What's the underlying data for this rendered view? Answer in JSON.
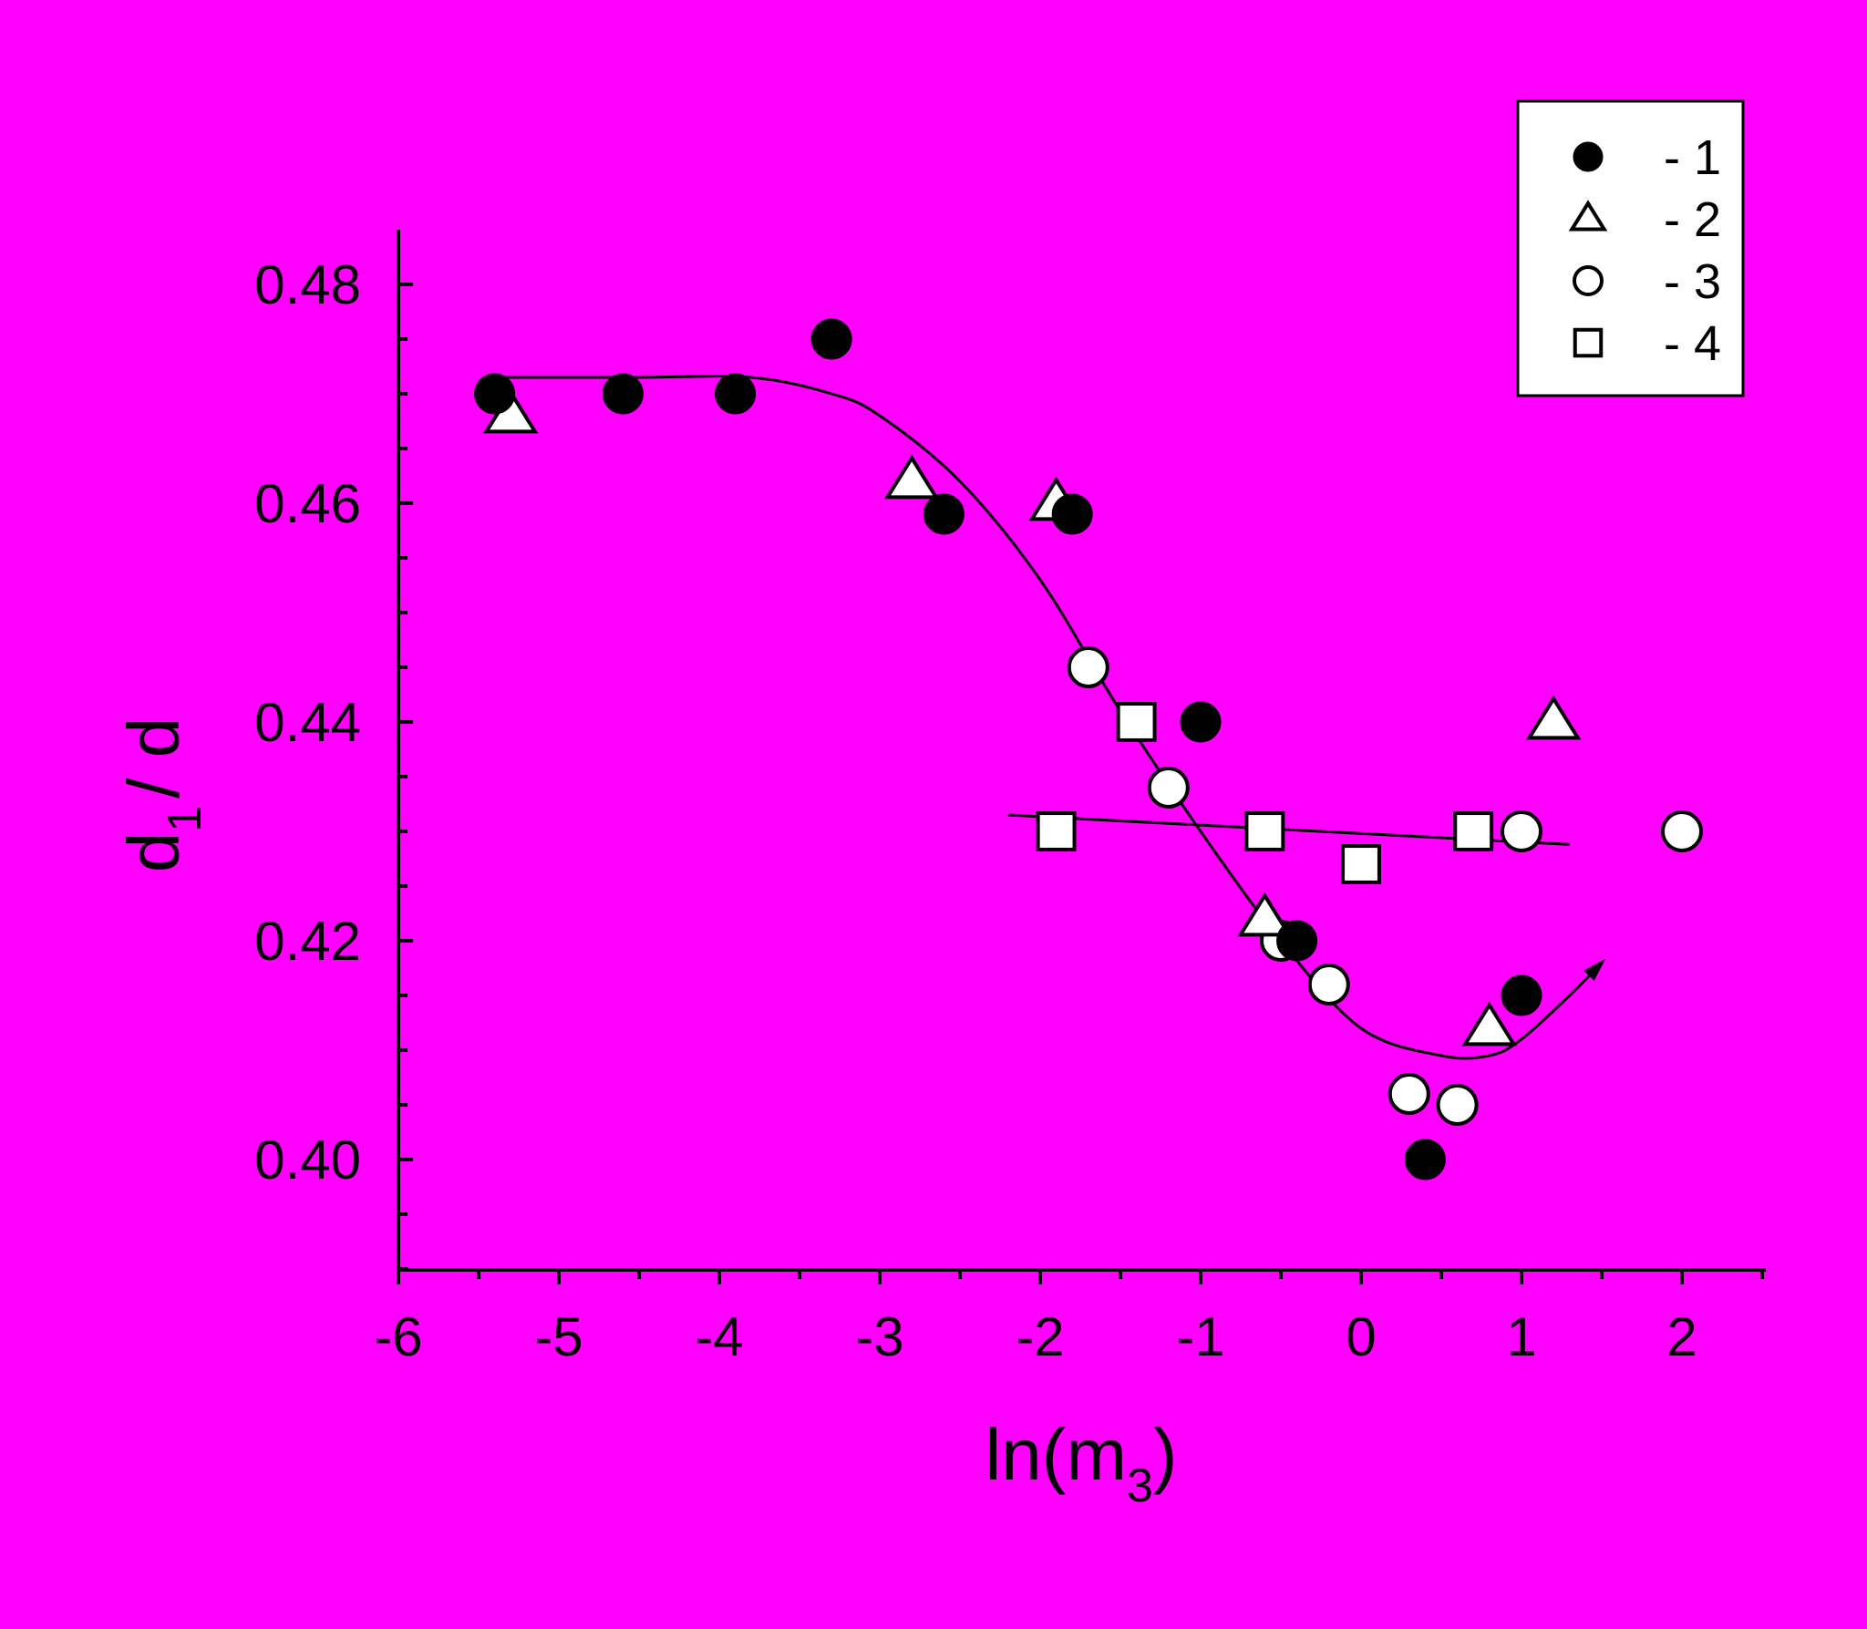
{
  "colors": {
    "background": "#ff00ff",
    "axis": "#000000",
    "filled_marker": "#000000",
    "open_marker_fill": "#ffffff",
    "legend_background": "#ffffff"
  },
  "chart_data": {
    "type": "scatter",
    "xlabel_main": "ln(m",
    "xlabel_sub": "3",
    "xlabel_close": ")",
    "ylabel_main": "d",
    "ylabel_sub": "1",
    "ylabel_rest": "/ d",
    "xlim": [
      -6,
      2.5
    ],
    "ylim": [
      0.39,
      0.485
    ],
    "x_ticks": [
      "-6",
      "-5",
      "-4",
      "-3",
      "-2",
      "-1",
      "0",
      "1",
      "2"
    ],
    "y_ticks": [
      "0.40",
      "0.42",
      "0.44",
      "0.46",
      "0.48"
    ],
    "legend_position": "top-right",
    "series": [
      {
        "name": "- 1",
        "marker": "filled-circle",
        "points": [
          [
            -5.4,
            0.47
          ],
          [
            -4.6,
            0.47
          ],
          [
            -3.9,
            0.47
          ],
          [
            -3.3,
            0.475
          ],
          [
            -2.6,
            0.459
          ],
          [
            -1.8,
            0.459
          ],
          [
            -1.0,
            0.44
          ],
          [
            -0.4,
            0.42
          ],
          [
            0.4,
            0.4
          ],
          [
            1.0,
            0.415
          ]
        ]
      },
      {
        "name": "- 2",
        "marker": "open-triangle",
        "points": [
          [
            -5.3,
            0.468
          ],
          [
            -2.8,
            0.462
          ],
          [
            -1.9,
            0.46
          ],
          [
            -0.6,
            0.422
          ],
          [
            0.8,
            0.412
          ],
          [
            1.2,
            0.44
          ]
        ]
      },
      {
        "name": "- 3",
        "marker": "open-circle",
        "points": [
          [
            -1.7,
            0.445
          ],
          [
            -1.2,
            0.434
          ],
          [
            -0.5,
            0.42
          ],
          [
            -0.2,
            0.416
          ],
          [
            0.3,
            0.406
          ],
          [
            0.6,
            0.405
          ],
          [
            1.0,
            0.43
          ],
          [
            2.0,
            0.43
          ]
        ]
      },
      {
        "name": "- 4",
        "marker": "open-square",
        "points": [
          [
            -1.9,
            0.43
          ],
          [
            -1.4,
            0.44
          ],
          [
            -0.6,
            0.43
          ],
          [
            0.0,
            0.427
          ],
          [
            0.7,
            0.43
          ]
        ]
      }
    ],
    "fit_curves": [
      {
        "type": "sigmoid-with-upturn-arrow",
        "points": [
          [
            -5.4,
            0.4715
          ],
          [
            -4.5,
            0.4715
          ],
          [
            -3.8,
            0.4715
          ],
          [
            -3.3,
            0.47
          ],
          [
            -3.0,
            0.468
          ],
          [
            -2.5,
            0.462
          ],
          [
            -2.0,
            0.453
          ],
          [
            -1.5,
            0.441
          ],
          [
            -1.0,
            0.43
          ],
          [
            -0.5,
            0.42
          ],
          [
            0.0,
            0.412
          ],
          [
            0.5,
            0.4095
          ],
          [
            0.8,
            0.4095
          ],
          [
            1.0,
            0.411
          ],
          [
            1.3,
            0.415
          ],
          [
            1.5,
            0.418
          ]
        ]
      },
      {
        "type": "linear",
        "points": [
          [
            -2.2,
            0.4315
          ],
          [
            1.3,
            0.4288
          ]
        ]
      }
    ]
  }
}
